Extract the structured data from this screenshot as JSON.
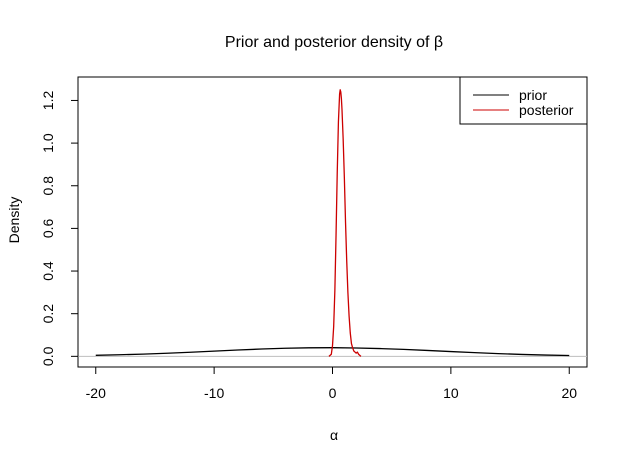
{
  "chart_data": {
    "type": "line",
    "title": "Prior and posterior density of β",
    "xlabel": "α",
    "ylabel": "Density",
    "xlim": [
      -21.5,
      21.5
    ],
    "ylim": [
      -0.05,
      1.31
    ],
    "x_ticks": [
      -20,
      -10,
      0,
      10,
      20
    ],
    "x_tick_labels": [
      "-20",
      "-10",
      "0",
      "10",
      "20"
    ],
    "y_ticks": [
      0.0,
      0.2,
      0.4,
      0.6,
      0.8,
      1.0,
      1.2
    ],
    "y_tick_labels": [
      "0.0",
      "0.2",
      "0.4",
      "0.6",
      "0.8",
      "1.0",
      "1.2"
    ],
    "grid": false,
    "reference_line_y": 0,
    "legend": {
      "placement": "top-right",
      "entries": [
        "prior",
        "posterior"
      ]
    },
    "series": [
      {
        "name": "prior",
        "color": "#000000",
        "x": [
          -20,
          -18,
          -16,
          -14,
          -12,
          -10,
          -8,
          -6,
          -4,
          -2,
          0,
          2,
          4,
          6,
          8,
          10,
          12,
          14,
          16,
          18,
          20
        ],
        "y": [
          0.0049,
          0.0073,
          0.0105,
          0.0146,
          0.0193,
          0.0245,
          0.0297,
          0.0343,
          0.0379,
          0.04,
          0.0405,
          0.0392,
          0.0364,
          0.0325,
          0.0276,
          0.0224,
          0.0173,
          0.0128,
          0.009,
          0.0061,
          0.0039
        ]
      },
      {
        "name": "posterior",
        "color": "#cc0000",
        "x": [
          -0.3,
          -0.1,
          0.0,
          0.1,
          0.2,
          0.3,
          0.4,
          0.5,
          0.6,
          0.65,
          0.7,
          0.75,
          0.8,
          0.9,
          1.0,
          1.1,
          1.2,
          1.3,
          1.4,
          1.5,
          1.6,
          1.7,
          1.8,
          1.9,
          2.0,
          2.1,
          2.2,
          2.4
        ],
        "y": [
          0.0,
          0.01,
          0.05,
          0.14,
          0.31,
          0.57,
          0.86,
          1.1,
          1.23,
          1.25,
          1.24,
          1.21,
          1.16,
          1.02,
          0.84,
          0.63,
          0.45,
          0.3,
          0.19,
          0.11,
          0.06,
          0.04,
          0.025,
          0.02,
          0.015,
          0.02,
          0.01,
          0.0
        ]
      }
    ]
  }
}
